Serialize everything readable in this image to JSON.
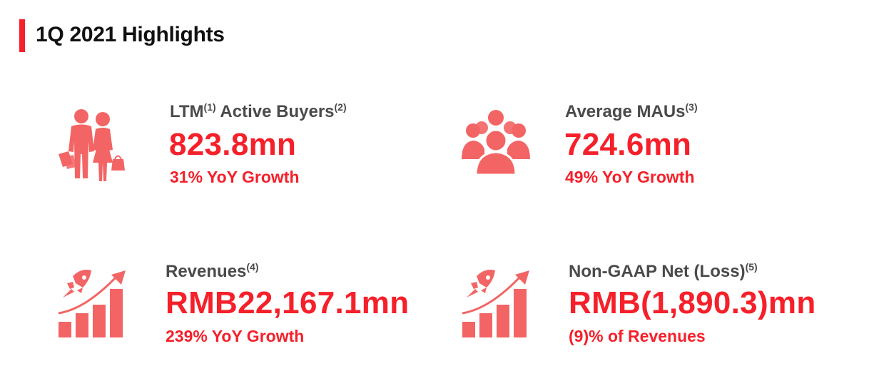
{
  "header": {
    "title": "1Q 2021 Highlights"
  },
  "colors": {
    "accent": "#f5202a",
    "icon": "#f36464",
    "label": "#4a4a4a"
  },
  "metrics": [
    {
      "label": "LTM",
      "sup1": "(1)",
      "label2": " Active Buyers",
      "sup2": "(2)",
      "value": "823.8mn",
      "sub": "31% YoY Growth",
      "icon": "shoppers-icon"
    },
    {
      "label": "Average MAUs",
      "sup1": "(3)",
      "value": "724.6mn",
      "sub": "49% YoY Growth",
      "icon": "users-group-icon"
    },
    {
      "label": "Revenues",
      "sup1": "(4)",
      "value": "RMB22,167.1mn",
      "sub": "239% YoY Growth",
      "icon": "rocket-growth-icon"
    },
    {
      "label": "Non-GAAP Net (Loss)",
      "sup1": "(5)",
      "value": "RMB(1,890.3)mn",
      "sub": "(9)% of Revenues",
      "icon": "rocket-growth-icon"
    }
  ]
}
